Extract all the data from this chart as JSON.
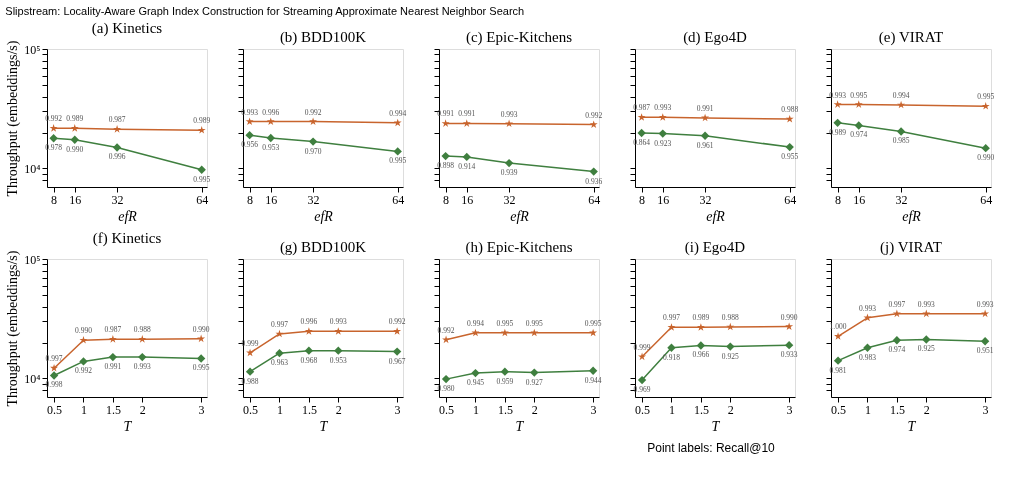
{
  "chart_data": [
    {
      "type": "line",
      "title": "(a) Kinetics",
      "xlabel": "efR",
      "ylabel": "Throughput (embeddings/s)",
      "log": "y",
      "x": [
        8,
        16,
        32,
        64
      ],
      "xlim": [
        5.5,
        66
      ],
      "xticks": [
        8,
        16,
        32,
        64
      ],
      "ylim": [
        7000,
        100000
      ],
      "yticks": [
        {
          "value": 8000,
          "label": null
        },
        {
          "value": 9000,
          "label": null
        },
        {
          "value": 10000,
          "label": "10⁴"
        },
        {
          "value": 20000,
          "label": null
        },
        {
          "value": 30000,
          "label": null
        },
        {
          "value": 40000,
          "label": null
        },
        {
          "value": 50000,
          "label": null
        },
        {
          "value": 60000,
          "label": null
        },
        {
          "value": 70000,
          "label": null
        },
        {
          "value": 80000,
          "label": null
        },
        {
          "value": 90000,
          "label": null
        },
        {
          "value": 100000,
          "label": "10⁵"
        }
      ],
      "series": [
        {
          "color": "#3f7f3f",
          "marker": "diamond",
          "values": [
            17900,
            17400,
            15000,
            9760
          ]
        },
        {
          "color": "#c8642d",
          "marker": "star",
          "values": [
            21700,
            21700,
            21300,
            20900
          ]
        }
      ],
      "annotations": [
        "Slipstream: Locality-Aware Graph Index Construction for Streaming Approximate Nearest Neighbor Search",
        {
          "text": "0.978",
          "x": 8,
          "y": 17900
        },
        {
          "text": "0.990",
          "x": 16,
          "y": 17400
        },
        {
          "text": "0.996",
          "x": 32,
          "y": 15000
        },
        {
          "text": "0.995",
          "x": 64,
          "y": 9760
        },
        {
          "text": "0.992",
          "x": 8,
          "y": 21700
        },
        {
          "text": "0.989",
          "x": 16,
          "y": 21700
        },
        {
          "text": "0.987",
          "x": 32,
          "y": 21300
        },
        {
          "text": "0.989",
          "x": 64,
          "y": 20900
        }
      ]
    },
    {
      "type": "line",
      "title": "(b) BDD100K",
      "xlabel": "efR",
      "log": "y",
      "tick_labels": "x",
      "x": [
        8,
        16,
        32,
        64
      ],
      "xlim": [
        5.5,
        66
      ],
      "xticks": [
        8,
        16,
        32,
        64
      ],
      "ylim": [
        7000,
        100000
      ],
      "yticks": [
        {
          "value": 8000,
          "label": null
        },
        {
          "value": 9000,
          "label": null
        },
        {
          "value": 10000,
          "label": null
        },
        {
          "value": 20000,
          "label": null
        },
        {
          "value": 30000,
          "label": null
        },
        {
          "value": 40000,
          "label": null
        },
        {
          "value": 50000,
          "label": null
        },
        {
          "value": 60000,
          "label": null
        },
        {
          "value": 70000,
          "label": null
        },
        {
          "value": 80000,
          "label": null
        },
        {
          "value": 90000,
          "label": null
        },
        {
          "value": 100000,
          "label": null
        }
      ],
      "series": [
        {
          "color": "#3f7f3f",
          "marker": "diamond",
          "values": [
            19000,
            18000,
            16800,
            13900
          ]
        },
        {
          "color": "#c8642d",
          "marker": "star",
          "values": [
            24700,
            24700,
            24700,
            24100
          ]
        }
      ],
      "annotations": [
        {
          "text": "0.956",
          "x": 8,
          "y": 19000
        },
        {
          "text": "0.953",
          "x": 16,
          "y": 18000
        },
        {
          "text": "0.970",
          "x": 32,
          "y": 16800
        },
        {
          "text": "0.995",
          "x": 64,
          "y": 13900
        },
        {
          "text": "0.993",
          "x": 8,
          "y": 24700
        },
        {
          "text": "0.996",
          "x": 16,
          "y": 24700
        },
        {
          "text": "0.992",
          "x": 32,
          "y": 24700
        },
        {
          "text": "0.994",
          "x": 64,
          "y": 24100
        }
      ]
    },
    {
      "type": "line",
      "title": "(c) Epic-Kitchens",
      "xlabel": "efR",
      "log": "y",
      "tick_labels": "x",
      "x": [
        8,
        16,
        32,
        64
      ],
      "xlim": [
        5.5,
        66
      ],
      "xticks": [
        8,
        16,
        32,
        64
      ],
      "ylim": [
        7000,
        100000
      ],
      "yticks": [
        {
          "value": 8000,
          "label": null
        },
        {
          "value": 9000,
          "label": null
        },
        {
          "value": 10000,
          "label": null
        },
        {
          "value": 20000,
          "label": null
        },
        {
          "value": 30000,
          "label": null
        },
        {
          "value": 40000,
          "label": null
        },
        {
          "value": 50000,
          "label": null
        },
        {
          "value": 60000,
          "label": null
        },
        {
          "value": 70000,
          "label": null
        },
        {
          "value": 80000,
          "label": null
        },
        {
          "value": 90000,
          "label": null
        },
        {
          "value": 100000,
          "label": null
        }
      ],
      "series": [
        {
          "color": "#3f7f3f",
          "marker": "diamond",
          "values": [
            12700,
            12500,
            11100,
            9420
          ]
        },
        {
          "color": "#c8642d",
          "marker": "star",
          "values": [
            23800,
            23800,
            23700,
            23300
          ]
        }
      ],
      "annotations": [
        {
          "text": "0.898",
          "x": 8,
          "y": 12700
        },
        {
          "text": "0.914",
          "x": 16,
          "y": 12500
        },
        {
          "text": "0.939",
          "x": 32,
          "y": 11100
        },
        {
          "text": "0.936",
          "x": 64,
          "y": 9420
        },
        {
          "text": "0.991",
          "x": 8,
          "y": 23800
        },
        {
          "text": "0.991",
          "x": 16,
          "y": 23800
        },
        {
          "text": "0.993",
          "x": 32,
          "y": 23700
        },
        {
          "text": "0.992",
          "x": 64,
          "y": 23300
        }
      ]
    },
    {
      "type": "line",
      "title": "(d) Ego4D",
      "xlabel": "efR",
      "log": "y",
      "tick_labels": "x",
      "x": [
        8,
        16,
        32,
        64
      ],
      "xlim": [
        5.5,
        66
      ],
      "xticks": [
        8,
        16,
        32,
        64
      ],
      "ylim": [
        7000,
        100000
      ],
      "yticks": [
        {
          "value": 8000,
          "label": null
        },
        {
          "value": 9000,
          "label": null
        },
        {
          "value": 10000,
          "label": null
        },
        {
          "value": 20000,
          "label": null
        },
        {
          "value": 30000,
          "label": null
        },
        {
          "value": 40000,
          "label": null
        },
        {
          "value": 50000,
          "label": null
        },
        {
          "value": 60000,
          "label": null
        },
        {
          "value": 70000,
          "label": null
        },
        {
          "value": 80000,
          "label": null
        },
        {
          "value": 90000,
          "label": null
        },
        {
          "value": 100000,
          "label": null
        }
      ],
      "series": [
        {
          "color": "#3f7f3f",
          "marker": "diamond",
          "values": [
            19800,
            19600,
            18800,
            15100
          ]
        },
        {
          "color": "#c8642d",
          "marker": "star",
          "values": [
            26800,
            26800,
            26500,
            25900
          ]
        }
      ],
      "annotations": [
        {
          "text": "0.864",
          "x": 8,
          "y": 19800
        },
        {
          "text": "0.923",
          "x": 16,
          "y": 19600
        },
        {
          "text": "0.961",
          "x": 32,
          "y": 18800
        },
        {
          "text": "0.955",
          "x": 64,
          "y": 15100
        },
        {
          "text": "0.987",
          "x": 8,
          "y": 26800
        },
        {
          "text": "0.993",
          "x": 16,
          "y": 26800
        },
        {
          "text": "0.991",
          "x": 32,
          "y": 26500
        },
        {
          "text": "0.988",
          "x": 64,
          "y": 25900
        }
      ]
    },
    {
      "type": "line",
      "title": "(e) VIRAT",
      "xlabel": "efR",
      "log": "y",
      "tick_labels": "x",
      "x": [
        8,
        16,
        32,
        64
      ],
      "xlim": [
        5.5,
        66
      ],
      "xticks": [
        8,
        16,
        32,
        64
      ],
      "ylim": [
        7000,
        100000
      ],
      "yticks": [
        {
          "value": 8000,
          "label": null
        },
        {
          "value": 9000,
          "label": null
        },
        {
          "value": 10000,
          "label": null
        },
        {
          "value": 20000,
          "label": null
        },
        {
          "value": 30000,
          "label": null
        },
        {
          "value": 40000,
          "label": null
        },
        {
          "value": 50000,
          "label": null
        },
        {
          "value": 60000,
          "label": null
        },
        {
          "value": 70000,
          "label": null
        },
        {
          "value": 80000,
          "label": null
        },
        {
          "value": 90000,
          "label": null
        },
        {
          "value": 100000,
          "label": null
        }
      ],
      "series": [
        {
          "color": "#3f7f3f",
          "marker": "diamond",
          "values": [
            24100,
            22900,
            20400,
            14800
          ]
        },
        {
          "color": "#c8642d",
          "marker": "star",
          "values": [
            34300,
            34300,
            34000,
            33200
          ]
        }
      ],
      "annotations": [
        {
          "text": "0.989",
          "x": 8,
          "y": 24100
        },
        {
          "text": "0.974",
          "x": 16,
          "y": 22900
        },
        {
          "text": "0.985",
          "x": 32,
          "y": 20400
        },
        {
          "text": "0.990",
          "x": 64,
          "y": 14800
        },
        {
          "text": "0.993",
          "x": 8,
          "y": 34300
        },
        {
          "text": "0.995",
          "x": 16,
          "y": 34300
        },
        {
          "text": "0.994",
          "x": 32,
          "y": 34000
        },
        {
          "text": "0.995",
          "x": 64,
          "y": 33200
        }
      ]
    },
    {
      "type": "line",
      "title": "(f) Kinetics",
      "xlabel": "T",
      "ylabel": "Throughput (embeddings/s)",
      "log": "y",
      "x": [
        0.5,
        1,
        1.5,
        2,
        3
      ],
      "xlim": [
        0.38,
        3.1
      ],
      "xticks": [
        0.5,
        1,
        1.5,
        2,
        3
      ],
      "ylim": [
        7000,
        100000
      ],
      "yticks": [
        {
          "value": 8000,
          "label": null
        },
        {
          "value": 9000,
          "label": null
        },
        {
          "value": 10000,
          "label": "10⁴"
        },
        {
          "value": 20000,
          "label": null
        },
        {
          "value": 30000,
          "label": null
        },
        {
          "value": 40000,
          "label": null
        },
        {
          "value": 50000,
          "label": null
        },
        {
          "value": 60000,
          "label": null
        },
        {
          "value": 70000,
          "label": null
        },
        {
          "value": 80000,
          "label": null
        },
        {
          "value": 90000,
          "label": null
        },
        {
          "value": 100000,
          "label": "10⁵"
        }
      ],
      "series": [
        {
          "color": "#3f7f3f",
          "marker": "diamond",
          "values": [
            10600,
            13900,
            15100,
            15100,
            14700
          ]
        },
        {
          "color": "#c8642d",
          "marker": "star",
          "values": [
            12200,
            20900,
            21300,
            21300,
            21500
          ]
        }
      ],
      "annotations": [
        {
          "text": "0.998",
          "x": 0.5,
          "y": 10600
        },
        {
          "text": "0.992",
          "x": 1,
          "y": 13900
        },
        {
          "text": "0.991",
          "x": 1.5,
          "y": 15100
        },
        {
          "text": "0.993",
          "x": 2,
          "y": 15100
        },
        {
          "text": "0.995",
          "x": 3,
          "y": 14700
        },
        {
          "text": "0.997",
          "x": 0.5,
          "y": 12200
        },
        {
          "text": "0.990",
          "x": 1,
          "y": 20900
        },
        {
          "text": "0.987",
          "x": 1.5,
          "y": 21300
        },
        {
          "text": "0.988",
          "x": 2,
          "y": 21300
        },
        {
          "text": "0.990",
          "x": 3,
          "y": 21500
        }
      ]
    },
    {
      "type": "line",
      "title": "(g) BDD100K",
      "xlabel": "T",
      "log": "y",
      "tick_labels": "x",
      "x": [
        0.5,
        1,
        1.5,
        2,
        3
      ],
      "xlim": [
        0.38,
        3.1
      ],
      "xticks": [
        0.5,
        1,
        1.5,
        2,
        3
      ],
      "ylim": [
        7000,
        100000
      ],
      "yticks": [
        {
          "value": 8000,
          "label": null
        },
        {
          "value": 9000,
          "label": null
        },
        {
          "value": 10000,
          "label": null
        },
        {
          "value": 20000,
          "label": null
        },
        {
          "value": 30000,
          "label": null
        },
        {
          "value": 40000,
          "label": null
        },
        {
          "value": 50000,
          "label": null
        },
        {
          "value": 60000,
          "label": null
        },
        {
          "value": 70000,
          "label": null
        },
        {
          "value": 80000,
          "label": null
        },
        {
          "value": 90000,
          "label": null
        },
        {
          "value": 100000,
          "label": null
        }
      ],
      "series": [
        {
          "color": "#3f7f3f",
          "marker": "diamond",
          "values": [
            11400,
            16300,
            17100,
            17100,
            16800
          ]
        },
        {
          "color": "#c8642d",
          "marker": "star",
          "values": [
            16400,
            23600,
            24800,
            24800,
            24800
          ]
        }
      ],
      "annotations": [
        {
          "text": "0.988",
          "x": 0.5,
          "y": 11400
        },
        {
          "text": "0.963",
          "x": 1,
          "y": 16300
        },
        {
          "text": "0.968",
          "x": 1.5,
          "y": 17100
        },
        {
          "text": "0.953",
          "x": 2,
          "y": 17100
        },
        {
          "text": "0.967",
          "x": 3,
          "y": 16800
        },
        {
          "text": "0.999",
          "x": 0.5,
          "y": 16400
        },
        {
          "text": "0.997",
          "x": 1,
          "y": 23600
        },
        {
          "text": "0.996",
          "x": 1.5,
          "y": 24800
        },
        {
          "text": "0.993",
          "x": 2,
          "y": 24800
        },
        {
          "text": "0.992",
          "x": 3,
          "y": 24800
        }
      ]
    },
    {
      "type": "line",
      "title": "(h) Epic-Kitchens",
      "xlabel": "T",
      "log": "y",
      "tick_labels": "x",
      "x": [
        0.5,
        1,
        1.5,
        2,
        3
      ],
      "xlim": [
        0.38,
        3.1
      ],
      "xticks": [
        0.5,
        1,
        1.5,
        2,
        3
      ],
      "ylim": [
        7000,
        100000
      ],
      "yticks": [
        {
          "value": 8000,
          "label": null
        },
        {
          "value": 9000,
          "label": null
        },
        {
          "value": 10000,
          "label": null
        },
        {
          "value": 20000,
          "label": null
        },
        {
          "value": 30000,
          "label": null
        },
        {
          "value": 40000,
          "label": null
        },
        {
          "value": 50000,
          "label": null
        },
        {
          "value": 60000,
          "label": null
        },
        {
          "value": 70000,
          "label": null
        },
        {
          "value": 80000,
          "label": null
        },
        {
          "value": 90000,
          "label": null
        },
        {
          "value": 100000,
          "label": null
        }
      ],
      "series": [
        {
          "color": "#3f7f3f",
          "marker": "diamond",
          "values": [
            9880,
            11100,
            11400,
            11200,
            11600
          ]
        },
        {
          "color": "#c8642d",
          "marker": "star",
          "values": [
            21100,
            24100,
            24100,
            24100,
            24100
          ]
        }
      ],
      "annotations": [
        {
          "text": "0.980",
          "x": 0.5,
          "y": 9880
        },
        {
          "text": "0.945",
          "x": 1,
          "y": 11100
        },
        {
          "text": "0.959",
          "x": 1.5,
          "y": 11400
        },
        {
          "text": "0.927",
          "x": 2,
          "y": 11200
        },
        {
          "text": "0.944",
          "x": 3,
          "y": 11600
        },
        {
          "text": "0.992",
          "x": 0.5,
          "y": 21100
        },
        {
          "text": "0.994",
          "x": 1,
          "y": 24100
        },
        {
          "text": "0.995",
          "x": 1.5,
          "y": 24100
        },
        {
          "text": "0.995",
          "x": 2,
          "y": 24100
        },
        {
          "text": "0.995",
          "x": 3,
          "y": 24100
        }
      ]
    },
    {
      "type": "line",
      "title": "(i) Ego4D",
      "xlabel": "T",
      "log": "y",
      "tick_labels": "x",
      "x": [
        0.5,
        1,
        1.5,
        2,
        3
      ],
      "xlim": [
        0.38,
        3.1
      ],
      "xticks": [
        0.5,
        1,
        1.5,
        2,
        3
      ],
      "ylim": [
        7000,
        100000
      ],
      "yticks": [
        {
          "value": 8000,
          "label": null
        },
        {
          "value": 9000,
          "label": null
        },
        {
          "value": 10000,
          "label": null
        },
        {
          "value": 20000,
          "label": null
        },
        {
          "value": 30000,
          "label": null
        },
        {
          "value": 40000,
          "label": null
        },
        {
          "value": 50000,
          "label": null
        },
        {
          "value": 60000,
          "label": null
        },
        {
          "value": 70000,
          "label": null
        },
        {
          "value": 80000,
          "label": null
        },
        {
          "value": 90000,
          "label": null
        },
        {
          "value": 100000,
          "label": null
        }
      ],
      "series": [
        {
          "color": "#3f7f3f",
          "marker": "diamond",
          "values": [
            9700,
            18100,
            18900,
            18500,
            19000
          ]
        },
        {
          "color": "#c8642d",
          "marker": "star",
          "values": [
            15200,
            26800,
            26800,
            27000,
            27200
          ]
        }
      ],
      "annotations": [
        {
          "text": "0.969",
          "x": 0.5,
          "y": 9700
        },
        {
          "text": "0.918",
          "x": 1,
          "y": 18100
        },
        {
          "text": "0.966",
          "x": 1.5,
          "y": 18900
        },
        {
          "text": "0.925",
          "x": 2,
          "y": 18500
        },
        {
          "text": "0.933",
          "x": 3,
          "y": 19000
        },
        {
          "text": "0.999",
          "x": 0.5,
          "y": 15200
        },
        {
          "text": "0.997",
          "x": 1,
          "y": 26800
        },
        {
          "text": "0.989",
          "x": 1.5,
          "y": 26800
        },
        {
          "text": "0.988",
          "x": 2,
          "y": 27000
        },
        {
          "text": "0.990",
          "x": 3,
          "y": 27200
        }
      ]
    },
    {
      "type": "line",
      "title": "(j) VIRAT",
      "xlabel": "T",
      "log": "y",
      "tick_labels": "x",
      "x": [
        0.5,
        1,
        1.5,
        2,
        3
      ],
      "xlim": [
        0.38,
        3.1
      ],
      "xticks": [
        0.5,
        1,
        1.5,
        2,
        3
      ],
      "ylim": [
        7000,
        100000
      ],
      "yticks": [
        {
          "value": 8000,
          "label": null
        },
        {
          "value": 9000,
          "label": null
        },
        {
          "value": 10000,
          "label": null
        },
        {
          "value": 20000,
          "label": null
        },
        {
          "value": 30000,
          "label": null
        },
        {
          "value": 40000,
          "label": null
        },
        {
          "value": 50000,
          "label": null
        },
        {
          "value": 60000,
          "label": null
        },
        {
          "value": 70000,
          "label": null
        },
        {
          "value": 80000,
          "label": null
        },
        {
          "value": 90000,
          "label": null
        },
        {
          "value": 100000,
          "label": null
        }
      ],
      "series": [
        {
          "color": "#3f7f3f",
          "marker": "diamond",
          "values": [
            14100,
            18100,
            20900,
            21200,
            20500
          ]
        },
        {
          "color": "#c8642d",
          "marker": "star",
          "values": [
            22500,
            32200,
            34800,
            34800,
            34800
          ]
        }
      ],
      "annotations": [
        "Point labels: Recall@10",
        {
          "text": "0.981",
          "x": 0.5,
          "y": 14100
        },
        {
          "text": "0.983",
          "x": 1,
          "y": 18100
        },
        {
          "text": "0.974",
          "x": 1.5,
          "y": 20900
        },
        {
          "text": "0.925",
          "x": 2,
          "y": 21200
        },
        {
          "text": "0.951",
          "x": 3,
          "y": 20500
        },
        {
          "text": "1.000",
          "x": 0.5,
          "y": 22500
        },
        {
          "text": "0.993",
          "x": 1,
          "y": 32200
        },
        {
          "text": "0.997",
          "x": 1.5,
          "y": 34800
        },
        {
          "text": "0.993",
          "x": 2,
          "y": 34800
        },
        {
          "text": "0.993",
          "x": 3,
          "y": 34800
        }
      ]
    }
  ]
}
